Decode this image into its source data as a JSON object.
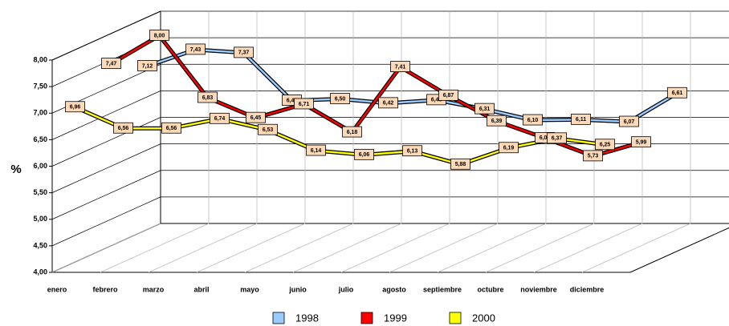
{
  "chart_data": {
    "type": "line",
    "ylabel": "%",
    "categories": [
      "enero",
      "febrero",
      "marzo",
      "abril",
      "mayo",
      "junio",
      "julio",
      "agosto",
      "septiembre",
      "octubre",
      "noviembre",
      "diciembre"
    ],
    "ylim": [
      4,
      8
    ],
    "yticks": [
      {
        "value": 4,
        "label": "4,00"
      },
      {
        "value": 4.5,
        "label": "4,50"
      },
      {
        "value": 5,
        "label": "5,00"
      },
      {
        "value": 5.5,
        "label": "5,50"
      },
      {
        "value": 6,
        "label": "6,00"
      },
      {
        "value": 6.5,
        "label": "6,50"
      },
      {
        "value": 7,
        "label": "7,00"
      },
      {
        "value": 7.5,
        "label": "7,50"
      },
      {
        "value": 8,
        "label": "8,00"
      }
    ],
    "grid": true,
    "series": [
      {
        "name": "1998",
        "color": "#99ccff",
        "values": [
          7.12,
          7.43,
          7.37,
          6.47,
          6.5,
          6.42,
          6.48,
          6.31,
          6.1,
          6.11,
          6.07,
          6.61
        ],
        "value_labels": [
          "7,12",
          "7,43",
          "7,37",
          "6,47",
          "6,50",
          "6,42",
          "6,48",
          "6,31",
          "6,10",
          "6,11",
          "6,07",
          "6,61"
        ]
      },
      {
        "name": "1999",
        "color": "#ff0000",
        "values": [
          7.47,
          8.0,
          6.83,
          6.45,
          6.71,
          6.18,
          7.41,
          6.87,
          6.39,
          6.07,
          5.73,
          5.99
        ],
        "value_labels": [
          "7,47",
          "8,00",
          "6,83",
          "6,45",
          "6,71",
          "6,18",
          "7,41",
          "6,87",
          "6,39",
          "6,07",
          "5,73",
          "5,99"
        ]
      },
      {
        "name": "2000",
        "color": "#ffff00",
        "values": [
          6.96,
          6.56,
          6.56,
          6.74,
          6.53,
          6.14,
          6.06,
          6.13,
          5.88,
          6.19,
          6.37,
          6.25
        ],
        "value_labels": [
          "6,96",
          "6,56",
          "6,56",
          "6,74",
          "6,53",
          "6,14",
          "6,06",
          "6,13",
          "5,88",
          "6,19",
          "6,37",
          "6,25"
        ]
      }
    ]
  }
}
